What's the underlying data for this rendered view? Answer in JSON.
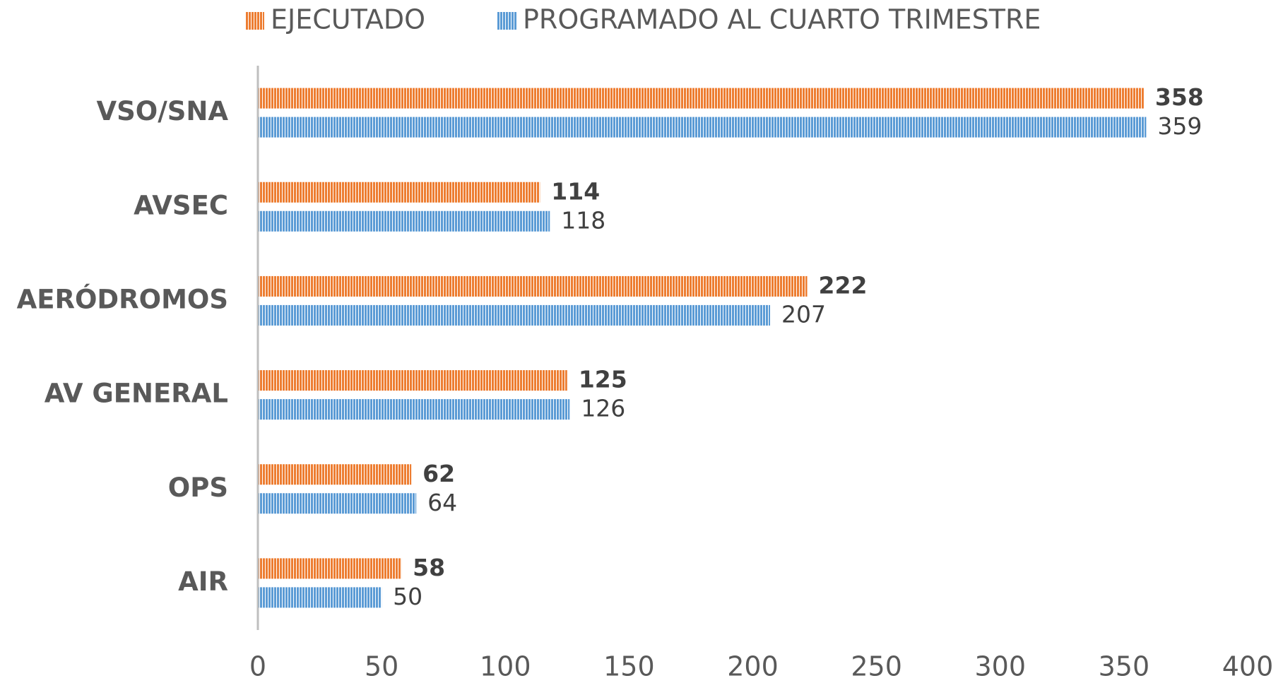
{
  "chart_data": {
    "type": "bar",
    "orientation": "horizontal",
    "categories": [
      "VSO/SNA",
      "AVSEC",
      "AERÓDROMOS",
      "AV GENERAL",
      "OPS",
      "AIR"
    ],
    "series": [
      {
        "name": "EJECUTADO",
        "color": "#ED7D31",
        "values": [
          358,
          114,
          222,
          125,
          62,
          58
        ]
      },
      {
        "name": "PROGRAMADO AL CUARTO TRIMESTRE",
        "color": "#5B9BD5",
        "values": [
          359,
          118,
          207,
          126,
          64,
          50
        ]
      }
    ],
    "xlim": [
      0,
      400
    ],
    "xticks": [
      0,
      50,
      100,
      150,
      200,
      250,
      300,
      350,
      400
    ],
    "grid": false,
    "legend": "top",
    "hatch": "vertical"
  }
}
